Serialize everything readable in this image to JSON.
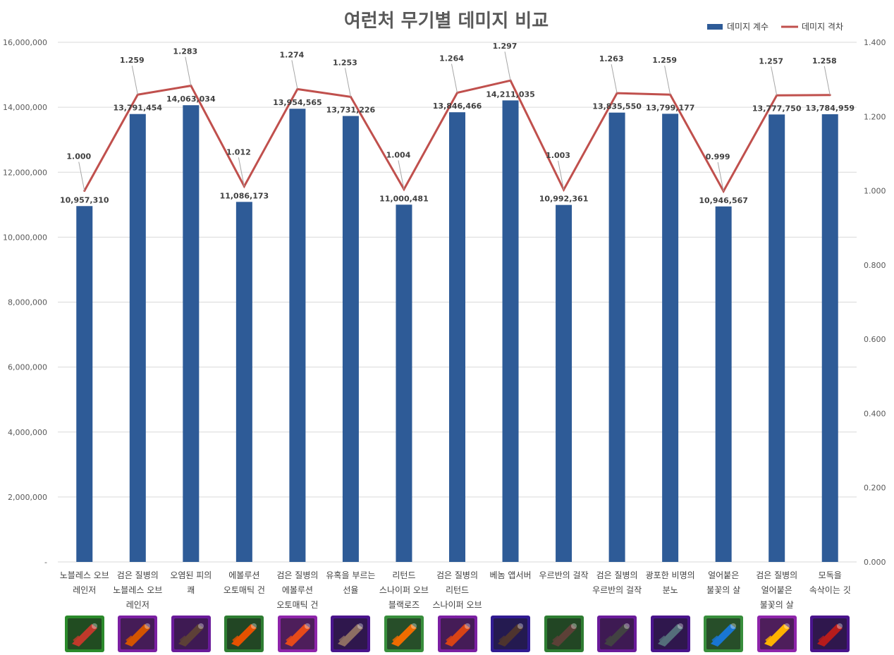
{
  "chart_data": {
    "type": "bar",
    "title": "여런처 무기별 데미지 비교",
    "categories": [
      [
        "노블레스 오브",
        "레인저"
      ],
      [
        "검은 질병의",
        "노블레스 오브",
        "레인저"
      ],
      [
        "오염된 피의",
        "쾌"
      ],
      [
        "에볼루션",
        "오토매틱 건"
      ],
      [
        "검은 질병의",
        "에볼루션",
        "오토매틱 건"
      ],
      [
        "유혹을 부르는",
        "선율"
      ],
      [
        "리턴드",
        "스나이퍼 오브",
        "블랙로즈"
      ],
      [
        "검은 질병의",
        "리턴드",
        "스나이퍼 오브",
        "블랙로즈"
      ],
      [
        "베놈 앱서버"
      ],
      [
        "우르반의 걸작"
      ],
      [
        "검은 질병의",
        "우르반의 걸작"
      ],
      [
        "광포한 비명의",
        "분노"
      ],
      [
        "얼어붙은",
        "불꽃의 살"
      ],
      [
        "검은 질병의",
        "얼어붙은",
        "불꽃의 살"
      ],
      [
        "모독을",
        "속삭이는 깃"
      ]
    ],
    "series": [
      {
        "name": "데미지 계수",
        "kind": "bar",
        "axis": "left",
        "color": "#2e5b97",
        "values": [
          10957310,
          13791454,
          14063034,
          11086173,
          13954565,
          13731226,
          11000481,
          13846466,
          14211035,
          10992361,
          13835550,
          13799177,
          10946567,
          13777750,
          13784959
        ],
        "labels": [
          "10,957,310",
          "13,791,454",
          "14,063,034",
          "11,086,173",
          "13,954,565",
          "13,731,226",
          "11,000,481",
          "13,846,466",
          "14,211,035",
          "10,992,361",
          "13,835,550",
          "13,799,177",
          "10,946,567",
          "13,777,750",
          "13,784,959"
        ]
      },
      {
        "name": "데미지 격차",
        "kind": "line",
        "axis": "right",
        "color": "#c0504d",
        "values": [
          1.0,
          1.259,
          1.283,
          1.012,
          1.274,
          1.253,
          1.004,
          1.264,
          1.297,
          1.003,
          1.263,
          1.259,
          0.999,
          1.257,
          1.258
        ],
        "labels": [
          "1.000",
          "1.259",
          "1.283",
          "1.012",
          "1.274",
          "1.253",
          "1.004",
          "1.264",
          "1.297",
          "1.003",
          "1.263",
          "1.259",
          "0.999",
          "1.257",
          "1.258"
        ]
      }
    ],
    "y_left": {
      "ylim": [
        0,
        16000000
      ],
      "ticks": [
        "-",
        "2,000,000",
        "4,000,000",
        "6,000,000",
        "8,000,000",
        "10,000,000",
        "12,000,000",
        "14,000,000",
        "16,000,000"
      ]
    },
    "y_right": {
      "ylim": [
        0,
        1.4
      ],
      "ticks": [
        "0.000",
        "0.200",
        "0.400",
        "0.600",
        "0.800",
        "1.000",
        "1.200",
        "1.400"
      ]
    },
    "grid": true,
    "legend": "top-right",
    "icons": [
      {
        "name": "gun-icon",
        "bg": "#2b8a2b",
        "fg": "#c0392b"
      },
      {
        "name": "gun-icon",
        "bg": "#7b1fa2",
        "fg": "#d35400"
      },
      {
        "name": "gun-icon",
        "bg": "#6a1b9a",
        "fg": "#5d4037"
      },
      {
        "name": "gun-icon",
        "bg": "#2e7d32",
        "fg": "#e65100"
      },
      {
        "name": "gun-icon",
        "bg": "#8e24aa",
        "fg": "#e64a19"
      },
      {
        "name": "gun-icon",
        "bg": "#4a148c",
        "fg": "#8d6e63"
      },
      {
        "name": "gun-icon",
        "bg": "#388e3c",
        "fg": "#ef6c00"
      },
      {
        "name": "gun-icon",
        "bg": "#7b1fa2",
        "fg": "#d84315"
      },
      {
        "name": "gun-icon",
        "bg": "#311b92",
        "fg": "#4e342e"
      },
      {
        "name": "gun-icon",
        "bg": "#2e7d32",
        "fg": "#5d4037"
      },
      {
        "name": "gun-icon",
        "bg": "#6a1b9a",
        "fg": "#424242"
      },
      {
        "name": "gun-icon",
        "bg": "#4a148c",
        "fg": "#546e7a"
      },
      {
        "name": "gun-icon",
        "bg": "#388e3c",
        "fg": "#1976d2"
      },
      {
        "name": "gun-icon",
        "bg": "#8e24aa",
        "fg": "#ffb300"
      },
      {
        "name": "gun-icon",
        "bg": "#4a148c",
        "fg": "#b71c1c"
      }
    ]
  }
}
